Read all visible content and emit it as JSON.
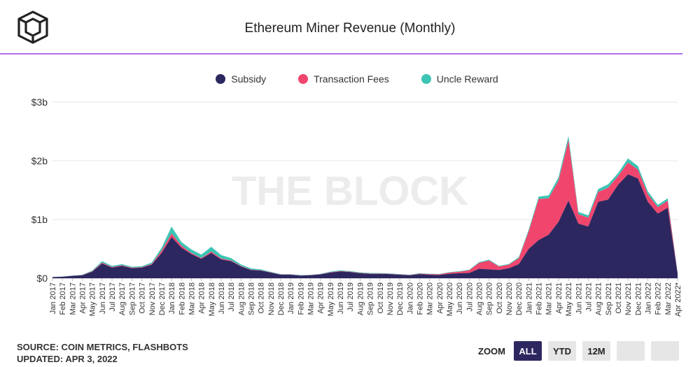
{
  "title": "Ethereum Miner Revenue (Monthly)",
  "watermark": "THE BLOCK",
  "source": "SOURCE: COIN METRICS, FLASHBOTS",
  "updated": "UPDATED: APR 3, 2022",
  "zoom": {
    "label": "ZOOM",
    "buttons": [
      "ALL",
      "YTD",
      "12M",
      "",
      ""
    ],
    "active": "ALL"
  },
  "colors": {
    "accent": "#b46cf0",
    "subsidy": "#2d2760",
    "fees": "#f0466e",
    "uncle": "#3cc4b4",
    "active_button": "#2d2760"
  },
  "chart_data": {
    "type": "area",
    "stacked": true,
    "title": "Ethereum Miner Revenue (Monthly)",
    "xlabel": "",
    "ylabel": "",
    "ylim": [
      0,
      3000000000
    ],
    "yticks": [
      0,
      1000000000,
      2000000000,
      3000000000
    ],
    "ytick_labels": [
      "$0",
      "$1b",
      "$2b",
      "$3b"
    ],
    "grid": true,
    "legend_position": "top-center",
    "x": [
      "Jan 2017",
      "Feb 2017",
      "Mar 2017",
      "Apr 2017",
      "May 2017",
      "Jun 2017",
      "Jul 2017",
      "Aug 2017",
      "Sep 2017",
      "Oct 2017",
      "Nov 2017",
      "Dec 2017",
      "Jan 2018",
      "Feb 2018",
      "Mar 2018",
      "Apr 2018",
      "May 2018",
      "Jun 2018",
      "Jul 2018",
      "Aug 2018",
      "Sep 2018",
      "Oct 2018",
      "Nov 2018",
      "Dec 2018",
      "Jan 2019",
      "Feb 2019",
      "Mar 2019",
      "Apr 2019",
      "May 2019",
      "Jun 2019",
      "Jul 2019",
      "Aug 2019",
      "Sep 2019",
      "Oct 2019",
      "Nov 2019",
      "Dec 2019",
      "Jan 2020",
      "Feb 2020",
      "Mar 2020",
      "Apr 2020",
      "May 2020",
      "Jun 2020",
      "Jul 2020",
      "Aug 2020",
      "Sep 2020",
      "Oct 2020",
      "Nov 2020",
      "Dec 2020",
      "Jan 2021",
      "Feb 2021",
      "Mar 2021",
      "Apr 2021",
      "May 2021",
      "Jun 2021",
      "Jul 2021",
      "Aug 2021",
      "Sep 2021",
      "Oct 2021",
      "Nov 2021",
      "Dec 2021",
      "Jan 2022",
      "Feb 2022",
      "Mar 2022",
      "Apr 2022*"
    ],
    "series": [
      {
        "name": "Subsidy",
        "color": "#2d2760",
        "values": [
          20000000,
          25000000,
          40000000,
          50000000,
          110000000,
          250000000,
          180000000,
          210000000,
          170000000,
          180000000,
          230000000,
          430000000,
          700000000,
          520000000,
          410000000,
          330000000,
          430000000,
          320000000,
          290000000,
          200000000,
          140000000,
          130000000,
          95000000,
          60000000,
          60000000,
          45000000,
          50000000,
          65000000,
          95000000,
          115000000,
          105000000,
          85000000,
          75000000,
          75000000,
          70000000,
          60000000,
          50000000,
          70000000,
          60000000,
          55000000,
          75000000,
          85000000,
          90000000,
          160000000,
          150000000,
          140000000,
          170000000,
          240000000,
          500000000,
          650000000,
          740000000,
          960000000,
          1320000000,
          930000000,
          880000000,
          1300000000,
          1340000000,
          1590000000,
          1770000000,
          1700000000,
          1300000000,
          1100000000,
          1200000000,
          80000000
        ]
      },
      {
        "name": "Transaction Fees",
        "color": "#f0466e",
        "values": [
          1000000,
          1000000,
          2000000,
          3000000,
          8000000,
          15000000,
          10000000,
          10000000,
          8000000,
          8000000,
          12000000,
          40000000,
          60000000,
          35000000,
          20000000,
          12000000,
          25000000,
          15000000,
          12000000,
          8000000,
          6000000,
          5000000,
          4000000,
          3000000,
          3000000,
          3000000,
          3000000,
          4000000,
          6000000,
          7000000,
          6000000,
          6000000,
          6000000,
          5000000,
          5000000,
          4000000,
          4000000,
          8000000,
          10000000,
          12000000,
          20000000,
          25000000,
          45000000,
          100000000,
          150000000,
          60000000,
          60000000,
          100000000,
          300000000,
          700000000,
          620000000,
          700000000,
          1030000000,
          160000000,
          150000000,
          170000000,
          200000000,
          150000000,
          200000000,
          150000000,
          130000000,
          110000000,
          120000000,
          5000000
        ]
      },
      {
        "name": "Uncle Reward",
        "color": "#3cc4b4",
        "values": [
          2000000,
          2000000,
          3000000,
          5000000,
          12000000,
          25000000,
          20000000,
          20000000,
          17000000,
          16000000,
          25000000,
          50000000,
          120000000,
          60000000,
          60000000,
          60000000,
          80000000,
          60000000,
          40000000,
          25000000,
          20000000,
          15000000,
          10000000,
          7000000,
          5000000,
          5000000,
          5000000,
          6000000,
          10000000,
          12000000,
          10000000,
          9000000,
          8000000,
          8000000,
          7000000,
          6000000,
          5000000,
          7000000,
          6000000,
          6000000,
          7000000,
          9000000,
          9000000,
          15000000,
          15000000,
          10000000,
          12000000,
          20000000,
          30000000,
          40000000,
          50000000,
          60000000,
          70000000,
          40000000,
          40000000,
          50000000,
          60000000,
          50000000,
          70000000,
          60000000,
          50000000,
          40000000,
          40000000,
          3000000
        ]
      }
    ]
  }
}
